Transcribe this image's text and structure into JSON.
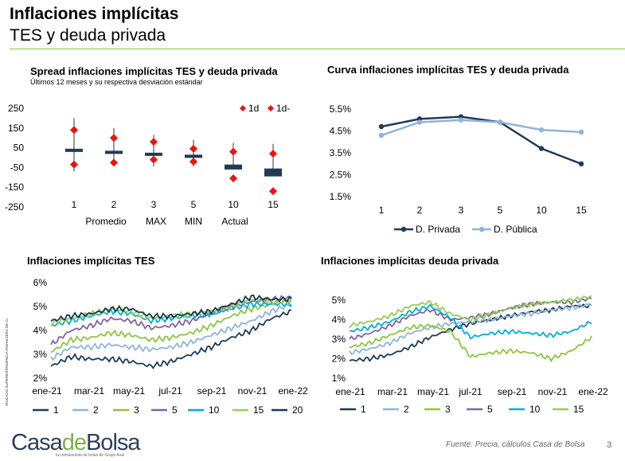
{
  "header": {
    "title": "Inflaciones implícitas",
    "subtitle": "TES y deuda privada"
  },
  "footer": {
    "source": "Fuente: Precia, cálculos Casa de Bolsa",
    "page_number": "3",
    "logo_casa": "Casa",
    "logo_de": "de",
    "logo_bolsa": "Bolsa",
    "logo_tagline": "la comisionista de bolsa de Grupo Aval",
    "vertical_note": "VIGILADO SUPERINTENDENCIA FINANCIERA DE COLOMBIA"
  },
  "colors": {
    "accent_green": "#8cc640",
    "navy": "#1f3b57",
    "light_blue": "#8fb4d9",
    "green": "#8dc63f",
    "purple": "#8064a2",
    "cyan": "#00b0d8",
    "lime": "#92d050",
    "red": "#ee1111"
  },
  "chart_data": [
    {
      "type": "bar",
      "title": "Spread inflaciones implícitas TES y deuda privada",
      "subtitle": "Últimos 12 meses y su respectiva desviación estándar",
      "categories": [
        "1",
        "2",
        "3",
        "5",
        "10",
        "15"
      ],
      "ylim": [
        -250,
        250
      ],
      "yticks": [
        "250",
        "150",
        "50",
        "-50",
        "-150",
        "-250"
      ],
      "legend": [
        "1d",
        "1d-"
      ],
      "bottom_labels": [
        "Promedio",
        "MAX",
        "MIN",
        "Actual"
      ],
      "current": [
        40,
        30,
        25,
        10,
        -60,
        -95
      ],
      "average": [
        45,
        35,
        25,
        15,
        -35,
        -55
      ],
      "max": [
        200,
        150,
        115,
        90,
        75,
        70
      ],
      "min": [
        -70,
        -40,
        -45,
        -45,
        -50,
        -75
      ],
      "plus_1sd": [
        140,
        100,
        80,
        45,
        30,
        20
      ],
      "minus_1sd": [
        -35,
        -25,
        -10,
        -20,
        -105,
        -170
      ]
    },
    {
      "type": "line",
      "title": "Curva inflaciones implícitas TES y deuda privada",
      "categories": [
        "1",
        "2",
        "3",
        "5",
        "10",
        "15"
      ],
      "ylim": [
        1.5,
        5.5
      ],
      "yticks": [
        "5.5%",
        "4.5%",
        "3.5%",
        "2.5%",
        "1.5%"
      ],
      "series": [
        {
          "name": "D. Privada",
          "values": [
            4.7,
            5.05,
            5.15,
            4.9,
            3.7,
            3.0
          ]
        },
        {
          "name": "D. Pública",
          "values": [
            4.3,
            4.9,
            5.0,
            4.9,
            4.55,
            4.45
          ]
        }
      ]
    },
    {
      "type": "line",
      "title": "Inflaciones implícitas TES",
      "ylim": [
        2,
        6
      ],
      "yticks": [
        "6%",
        "5%",
        "4%",
        "3%",
        "2%"
      ],
      "xticks": [
        "ene-21",
        "mar-21",
        "may-21",
        "jul-21",
        "sep-21",
        "nov-21",
        "ene-22"
      ],
      "series": [
        {
          "name": "1",
          "values": [
            2.5,
            2.9,
            2.8,
            2.8,
            2.7,
            2.5,
            2.7,
            3.0,
            3.3,
            3.7,
            4.0,
            4.5,
            4.8
          ]
        },
        {
          "name": "2",
          "values": [
            2.8,
            3.3,
            3.3,
            3.4,
            3.3,
            3.2,
            3.3,
            3.5,
            3.8,
            4.1,
            4.4,
            4.8,
            5.1
          ]
        },
        {
          "name": "3",
          "values": [
            3.1,
            3.6,
            3.7,
            3.9,
            3.8,
            3.6,
            3.7,
            3.9,
            4.2,
            4.6,
            4.9,
            5.1,
            5.3
          ]
        },
        {
          "name": "5",
          "values": [
            3.4,
            4.0,
            4.2,
            4.5,
            4.4,
            4.1,
            4.2,
            4.4,
            4.7,
            5.0,
            5.2,
            5.3,
            5.4
          ]
        },
        {
          "name": "10",
          "values": [
            4.2,
            4.4,
            4.6,
            4.8,
            4.7,
            4.4,
            4.5,
            4.6,
            4.7,
            4.9,
            5.1,
            5.1,
            5.1
          ]
        },
        {
          "name": "15",
          "values": [
            4.3,
            4.5,
            4.7,
            4.9,
            4.8,
            4.5,
            4.6,
            4.7,
            4.8,
            5.0,
            5.3,
            5.2,
            5.2
          ]
        },
        {
          "name": "20",
          "values": [
            4.4,
            4.6,
            4.7,
            4.9,
            4.9,
            4.6,
            4.6,
            4.7,
            4.8,
            5.1,
            5.4,
            5.3,
            5.3
          ]
        }
      ]
    },
    {
      "type": "line",
      "title": "Inflaciones implícitas deuda privada",
      "ylim": [
        1,
        5
      ],
      "yticks": [
        "5%",
        "4%",
        "3%",
        "2%",
        "1%"
      ],
      "xticks": [
        "ene-21",
        "mar-21",
        "may-21",
        "jul-21",
        "sep-21",
        "nov-21",
        "ene-22"
      ],
      "series": [
        {
          "name": "1",
          "values": [
            1.9,
            2.0,
            2.2,
            2.6,
            3.1,
            3.5,
            3.8,
            4.0,
            4.2,
            4.4,
            4.5,
            4.7,
            4.7
          ]
        },
        {
          "name": "2",
          "values": [
            2.3,
            2.5,
            2.8,
            3.3,
            3.6,
            3.8,
            3.9,
            4.0,
            4.2,
            4.3,
            4.5,
            4.6,
            4.8
          ]
        },
        {
          "name": "3",
          "values": [
            2.6,
            2.8,
            3.2,
            3.6,
            3.7,
            3.4,
            2.1,
            2.3,
            2.4,
            2.3,
            2.0,
            2.4,
            3.1
          ]
        },
        {
          "name": "5",
          "values": [
            3.0,
            3.3,
            3.7,
            4.2,
            4.5,
            4.0,
            4.1,
            4.3,
            4.6,
            4.8,
            4.9,
            4.9,
            5.1
          ]
        },
        {
          "name": "10",
          "values": [
            3.4,
            3.6,
            3.9,
            4.4,
            4.7,
            4.1,
            3.1,
            3.3,
            3.4,
            3.3,
            3.2,
            3.4,
            3.9
          ]
        },
        {
          "name": "15",
          "values": [
            3.7,
            3.9,
            4.2,
            4.7,
            4.9,
            4.3,
            4.0,
            4.3,
            4.6,
            4.8,
            4.9,
            5.0,
            5.2
          ]
        }
      ]
    }
  ]
}
